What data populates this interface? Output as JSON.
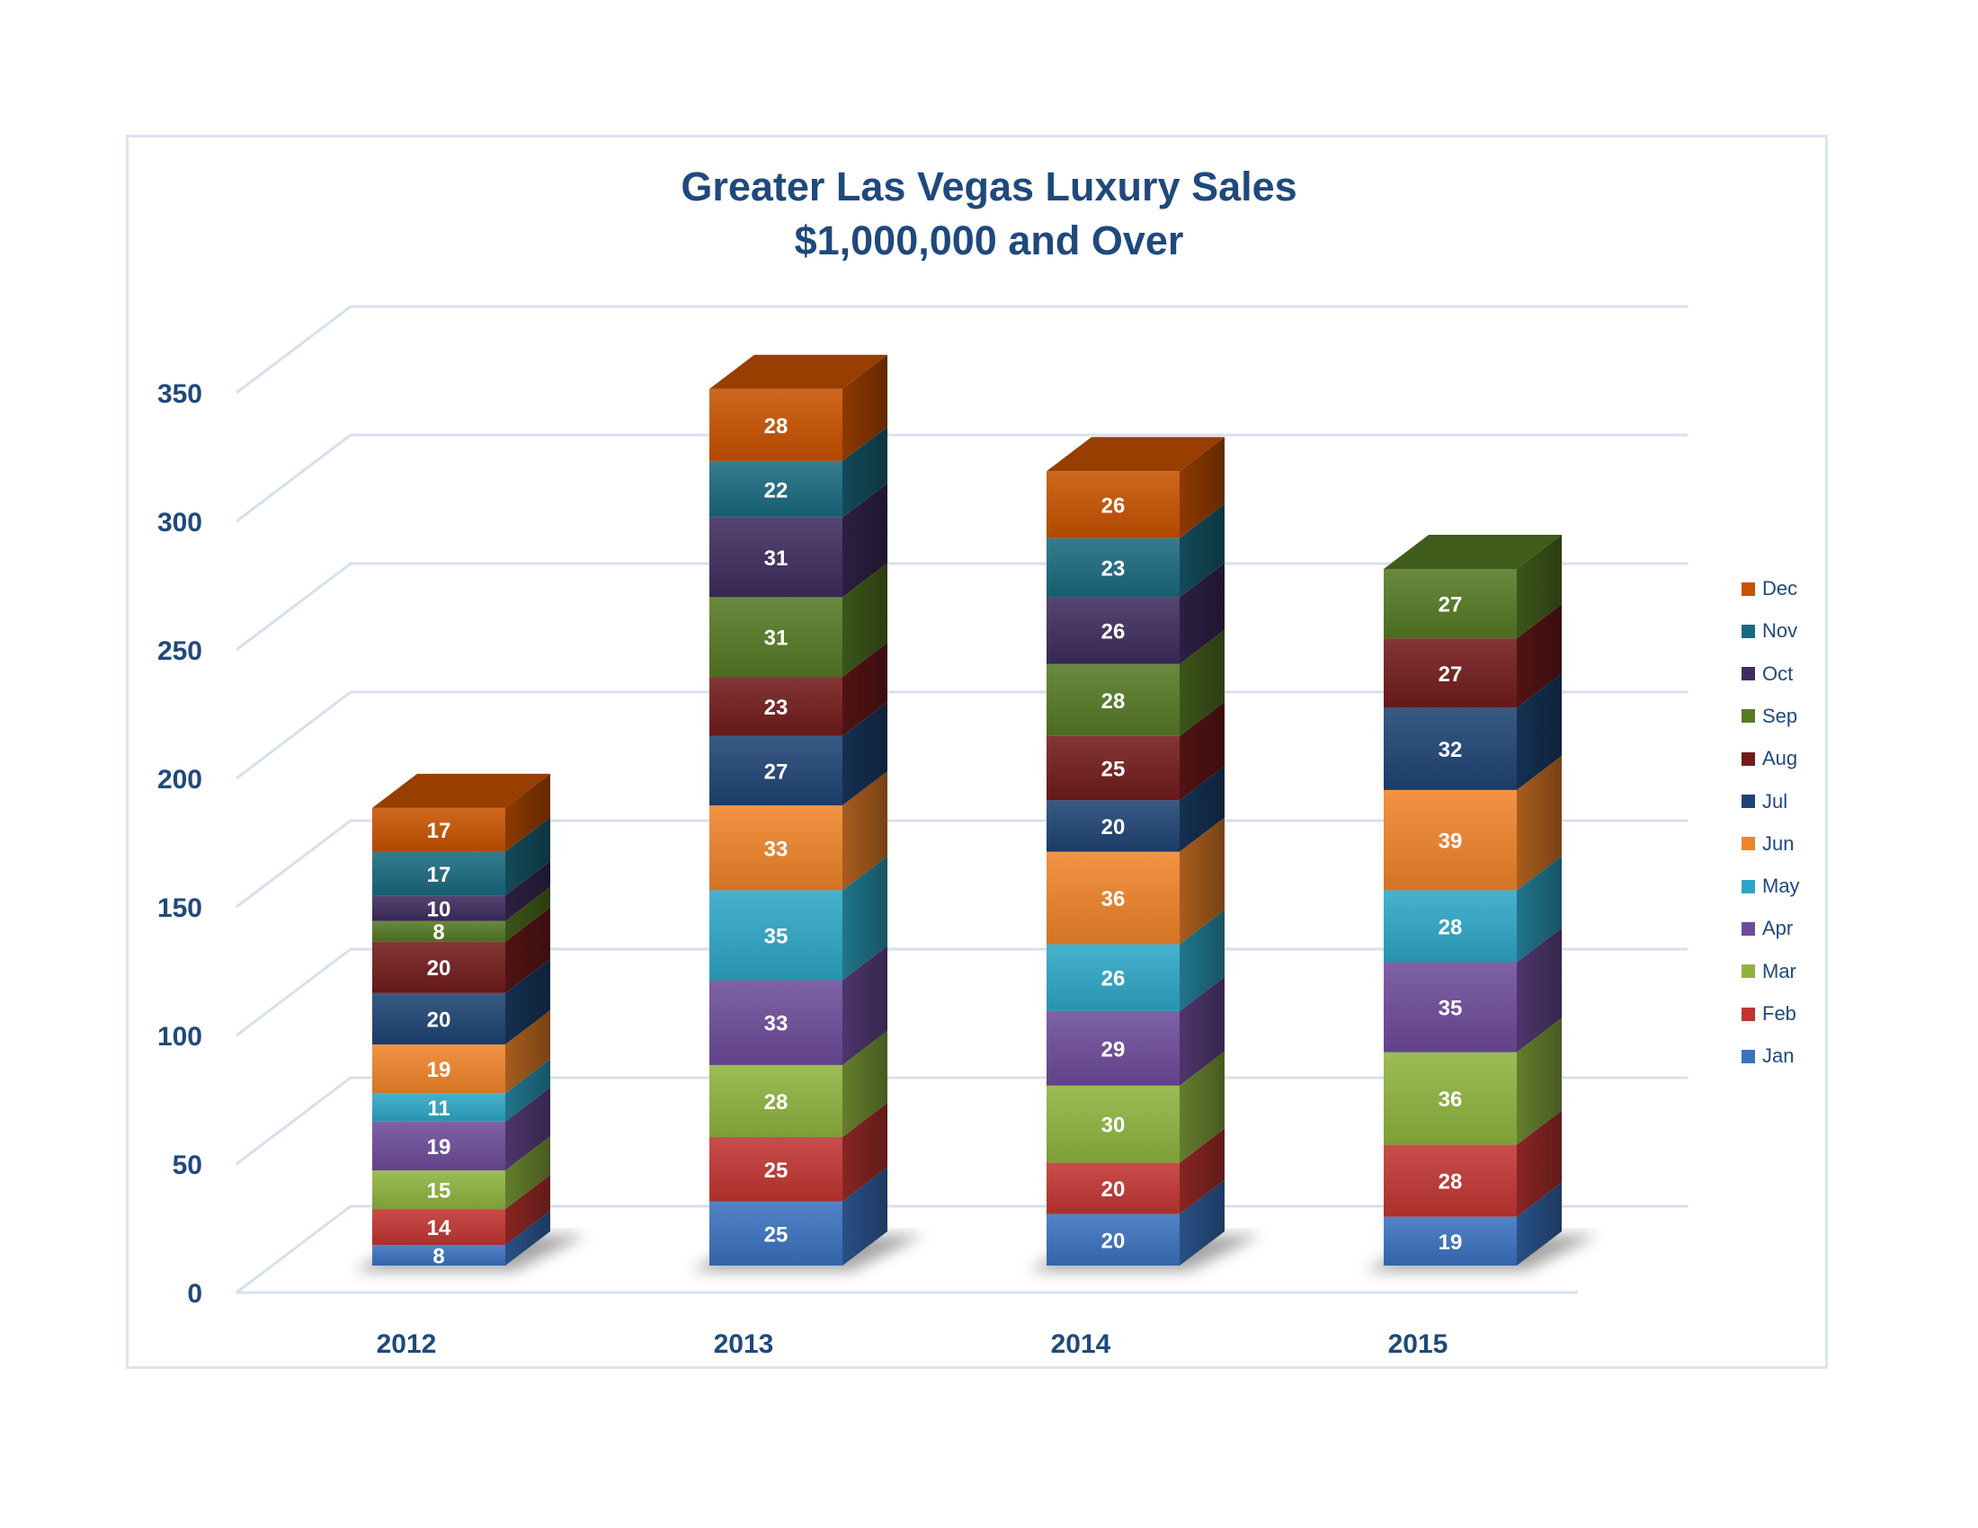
{
  "chart_data": {
    "type": "bar",
    "subtype": "stacked-3d",
    "title": "Greater Las Vegas Luxury Sales",
    "subtitle": "$1,000,000 and Over",
    "xlabel": "",
    "ylabel": "",
    "categories": [
      "2012",
      "2013",
      "2014",
      "2015"
    ],
    "ylim": [
      0,
      350
    ],
    "yticks": [
      "0",
      "50",
      "100",
      "150",
      "200",
      "250",
      "300",
      "350"
    ],
    "grid": true,
    "legend_position": "right",
    "series": [
      {
        "name": "Jan",
        "color": "#3a72c0",
        "values": [
          8,
          25,
          20,
          19
        ]
      },
      {
        "name": "Feb",
        "color": "#c23531",
        "values": [
          14,
          25,
          20,
          28
        ]
      },
      {
        "name": "Mar",
        "color": "#8fb33f",
        "values": [
          15,
          28,
          30,
          36
        ]
      },
      {
        "name": "Apr",
        "color": "#6e4b9a",
        "values": [
          19,
          33,
          29,
          35
        ]
      },
      {
        "name": "May",
        "color": "#2ea7c7",
        "values": [
          11,
          35,
          26,
          28
        ]
      },
      {
        "name": "Jun",
        "color": "#f0842a",
        "values": [
          19,
          33,
          36,
          39
        ]
      },
      {
        "name": "Jul",
        "color": "#1d4474",
        "values": [
          20,
          27,
          20,
          32
        ]
      },
      {
        "name": "Aug",
        "color": "#731b1b",
        "values": [
          20,
          23,
          25,
          27
        ]
      },
      {
        "name": "Sep",
        "color": "#557a24",
        "values": [
          8,
          31,
          28,
          27
        ]
      },
      {
        "name": "Oct",
        "color": "#3f2c5e",
        "values": [
          10,
          31,
          26,
          null
        ]
      },
      {
        "name": "Nov",
        "color": "#1a6a80",
        "values": [
          17,
          22,
          23,
          null
        ]
      },
      {
        "name": "Dec",
        "color": "#c95200",
        "values": [
          17,
          28,
          26,
          null
        ]
      }
    ]
  },
  "legend": {
    "items": [
      "Dec",
      "Nov",
      "Oct",
      "Sep",
      "Aug",
      "Jul",
      "Jun",
      "May",
      "Apr",
      "Mar",
      "Feb",
      "Jan"
    ]
  },
  "colors": {
    "title": "#1f497d",
    "gridline": "#d6e0ee",
    "frame": "#dbe4ef"
  }
}
